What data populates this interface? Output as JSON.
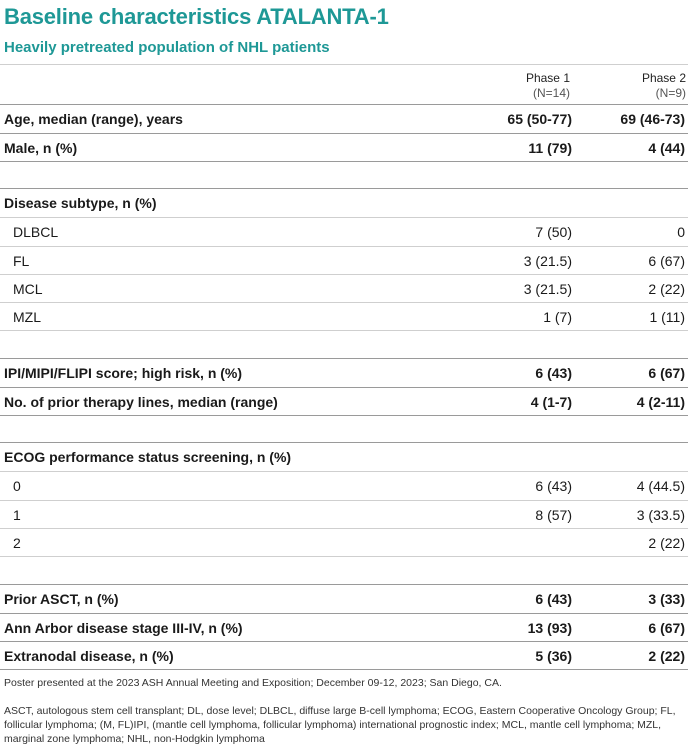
{
  "title": "Baseline characteristics ATALANTA-1",
  "subtitle": "Heavily pretreated population of NHL patients",
  "columns": [
    {
      "phase": "Phase 1",
      "n": "(N=14)"
    },
    {
      "phase": "Phase 2",
      "n": "(N=9)"
    }
  ],
  "rows": {
    "age": {
      "label": "Age, median (range), years",
      "p1": "65 (50-77)",
      "p2": "69 (46-73)"
    },
    "male": {
      "label": "Male, n (%)",
      "p1": "11 (79)",
      "p2": "4 (44)"
    },
    "disease_subtype": {
      "label": "Disease subtype, n (%)"
    },
    "dlbcl": {
      "label": "DLBCL",
      "p1": "7 (50)",
      "p2": "0"
    },
    "fl": {
      "label": "FL",
      "p1": "3 (21.5)",
      "p2": "6 (67)"
    },
    "mcl": {
      "label": "MCL",
      "p1": "3 (21.5)",
      "p2": "2 (22)"
    },
    "mzl": {
      "label": "MZL",
      "p1": "1 (7)",
      "p2": "1 (11)"
    },
    "ipi": {
      "label": "IPI/MIPI/FLIPI score; high risk, n (%)",
      "p1": "6 (43)",
      "p2": "6 (67)"
    },
    "prior_lines": {
      "label": "No. of prior therapy lines, median (range)",
      "p1": "4 (1-7)",
      "p2": "4 (2-11)"
    },
    "ecog": {
      "label": "ECOG performance status screening, n (%)"
    },
    "ecog0": {
      "label": "0",
      "p1": "6 (43)",
      "p2": "4 (44.5)"
    },
    "ecog1": {
      "label": "1",
      "p1": "8 (57)",
      "p2": "3 (33.5)"
    },
    "ecog2": {
      "label": "2",
      "p1": "",
      "p2": "2 (22)"
    },
    "asct": {
      "label": "Prior ASCT, n (%)",
      "p1": "6 (43)",
      "p2": "3 (33)"
    },
    "ann_arbor": {
      "label": "Ann Arbor disease stage III-IV, n (%)",
      "p1": "13 (93)",
      "p2": "6 (67)"
    },
    "extranodal": {
      "label": "Extranodal disease, n (%)",
      "p1": "5 (36)",
      "p2": "2 (22)"
    }
  },
  "footnotes": {
    "poster": "Poster presented at the 2023 ASH Annual Meeting and Exposition; December 09-12, 2023; San Diego, CA.",
    "abbrev": "ASCT, autologous stem cell transplant; DL, dose level; DLBCL, diffuse large B-cell lymphoma; ECOG, Eastern Cooperative Oncology Group; FL, follicular lymphoma; (M, FL)IPI, (mantle cell lymphoma, follicular lymphoma) international prognostic index; MCL, mantle cell lymphoma; MZL, marginal zone lymphoma; NHL, non-Hodgkin lymphoma"
  }
}
